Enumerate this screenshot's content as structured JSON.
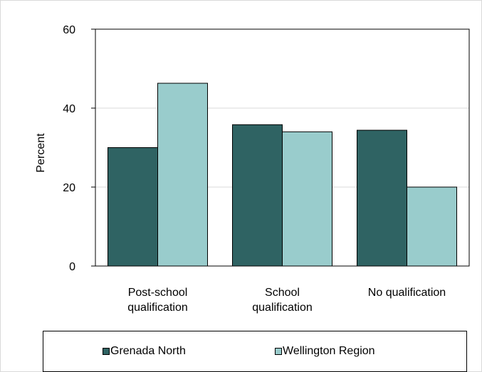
{
  "chart_data": {
    "type": "bar",
    "categories": [
      [
        "Post-school",
        "qualification"
      ],
      [
        "School",
        "qualification"
      ],
      [
        "No qualification"
      ]
    ],
    "series": [
      {
        "name": "Grenada North",
        "values": [
          30,
          35.8,
          34.4
        ],
        "color": "#2f6363"
      },
      {
        "name": "Wellington Region",
        "values": [
          46.3,
          34,
          20
        ],
        "color": "#99cccc"
      }
    ],
    "title": "",
    "xlabel": "",
    "ylabel": "Percent",
    "ylim": [
      0,
      60
    ],
    "yticks": [
      0,
      20,
      40,
      60
    ],
    "grid": true,
    "legend_position": "bottom"
  }
}
